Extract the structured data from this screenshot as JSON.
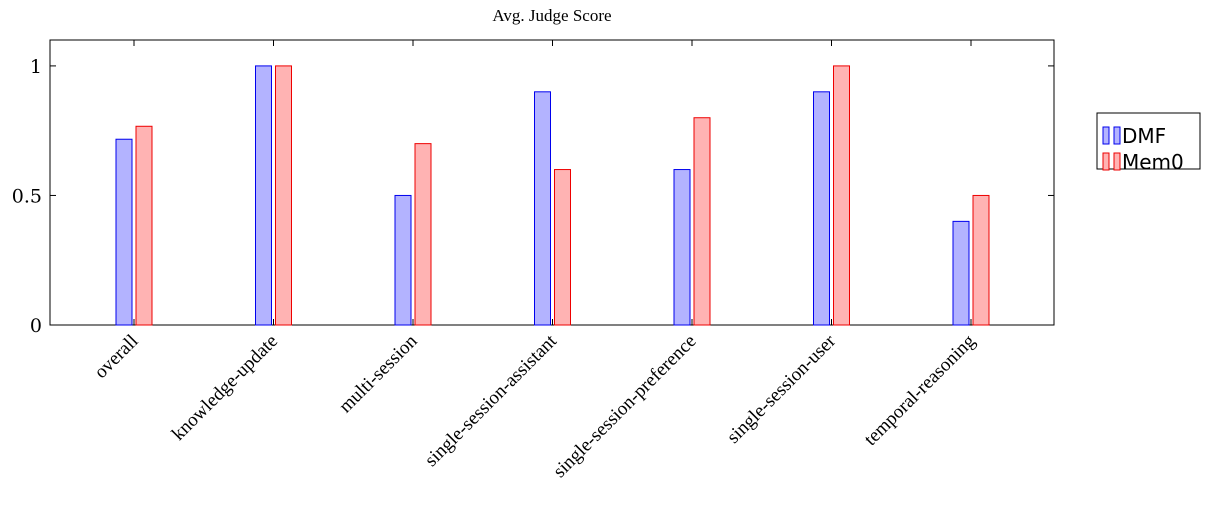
{
  "chart_data": {
    "type": "bar",
    "title": "Avg. Judge Score",
    "xlabel": "",
    "ylabel": "",
    "categories": [
      "overall",
      "knowledge-update",
      "multi-session",
      "single-session-assistant",
      "single-session-preference",
      "single-session-user",
      "temporal-reasoning"
    ],
    "series": [
      {
        "name": "DMF",
        "values": [
          0.717,
          1.0,
          0.5,
          0.9,
          0.6,
          0.9,
          0.4
        ],
        "fill": "#b3b3ff",
        "stroke": "#0000ee"
      },
      {
        "name": "Mem0",
        "values": [
          0.767,
          1.0,
          0.7,
          0.6,
          0.8,
          1.0,
          0.5
        ],
        "fill": "#ffb3b3",
        "stroke": "#ee0000"
      }
    ],
    "ylim": [
      0,
      1.1
    ],
    "yticks": [
      0,
      0.5,
      1
    ],
    "ytick_labels": [
      "0",
      "0.5",
      "1"
    ],
    "legend_position": "outside-right",
    "grid": false
  }
}
